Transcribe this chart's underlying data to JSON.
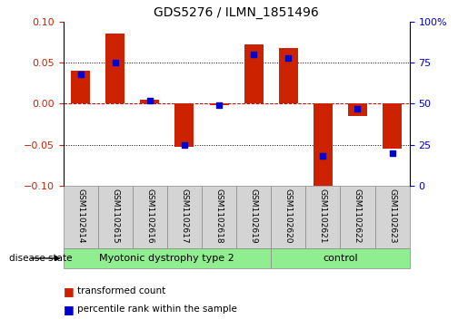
{
  "title": "GDS5276 / ILMN_1851496",
  "samples": [
    "GSM1102614",
    "GSM1102615",
    "GSM1102616",
    "GSM1102617",
    "GSM1102618",
    "GSM1102619",
    "GSM1102620",
    "GSM1102621",
    "GSM1102622",
    "GSM1102623"
  ],
  "red_bars": [
    0.04,
    0.085,
    0.005,
    -0.052,
    -0.002,
    0.072,
    0.068,
    -0.1,
    -0.015,
    -0.055
  ],
  "blue_pct": [
    68,
    75,
    52,
    25,
    49,
    80,
    78,
    18,
    47,
    20
  ],
  "ylim_left": [
    -0.1,
    0.1
  ],
  "ylim_right": [
    0,
    100
  ],
  "group1_label": "Myotonic dystrophy type 2",
  "group1_samples": 6,
  "group2_label": "control",
  "group2_samples": 4,
  "group_color": "#90EE90",
  "sample_bg_color": "#d4d4d4",
  "bar_color": "#cc2200",
  "marker_color": "#0000cc",
  "left_tick_color": "#cc2200",
  "right_tick_color": "#0000cc",
  "zero_line_color": "#cc0000",
  "grid_color": "#000000",
  "left_yticks": [
    -0.1,
    -0.05,
    0.0,
    0.05,
    0.1
  ],
  "right_yticks": [
    0,
    25,
    50,
    75,
    100
  ],
  "right_yticklabels": [
    "0",
    "25",
    "50",
    "75",
    "100%"
  ],
  "hline_dotted": [
    -0.05,
    0.05
  ],
  "hline_zero": 0.0,
  "disease_state_label": "disease state",
  "legend": [
    {
      "color": "#cc2200",
      "label": "transformed count"
    },
    {
      "color": "#0000cc",
      "label": "percentile rank within the sample"
    }
  ]
}
